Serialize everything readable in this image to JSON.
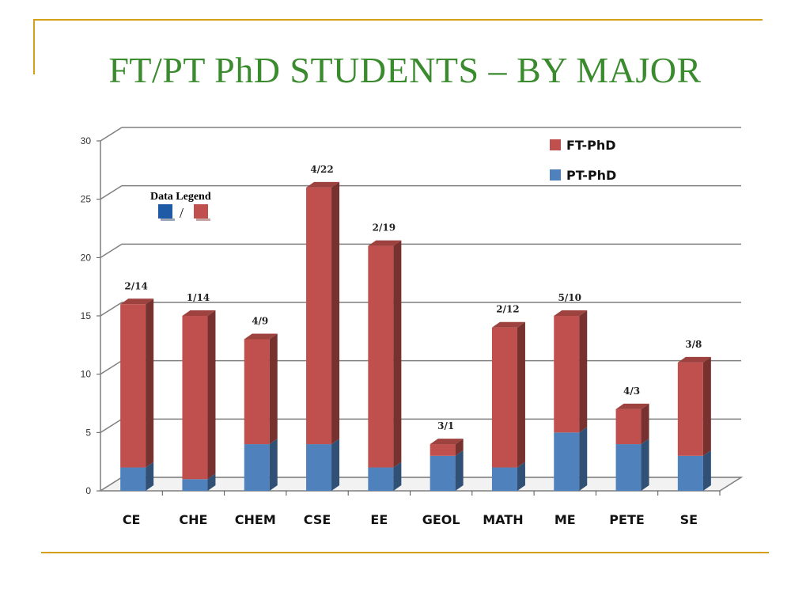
{
  "title": "FT/PT PhD STUDENTS – BY MAJOR",
  "note": {
    "title": "Data Legend",
    "separator": "/"
  },
  "colors": {
    "ft": "#c0504d",
    "pt": "#4f81bd",
    "title": "#3a8a2e",
    "rule": "#d4a017"
  },
  "chart_data": {
    "type": "bar",
    "stacked": true,
    "categories": [
      "CE",
      "CHE",
      "CHEM",
      "CSE",
      "EE",
      "GEOL",
      "MATH",
      "ME",
      "PETE",
      "SE"
    ],
    "series": [
      {
        "name": "PT-PhD",
        "values": [
          2,
          1,
          4,
          4,
          2,
          3,
          2,
          5,
          4,
          3
        ]
      },
      {
        "name": "FT-PhD",
        "values": [
          14,
          14,
          9,
          22,
          19,
          1,
          12,
          10,
          3,
          8
        ]
      }
    ],
    "data_labels": [
      "2/14",
      "1/14",
      "4/9",
      "4/22",
      "2/19",
      "3/1",
      "2/12",
      "5/10",
      "4/3",
      "3/8"
    ],
    "ylim": [
      0,
      30
    ],
    "yticks": [
      "0",
      "5",
      "10",
      "15",
      "20",
      "25",
      "30"
    ],
    "legend": [
      "FT-PhD",
      "PT-PhD"
    ],
    "legend_position": "top-right",
    "grid": true
  }
}
